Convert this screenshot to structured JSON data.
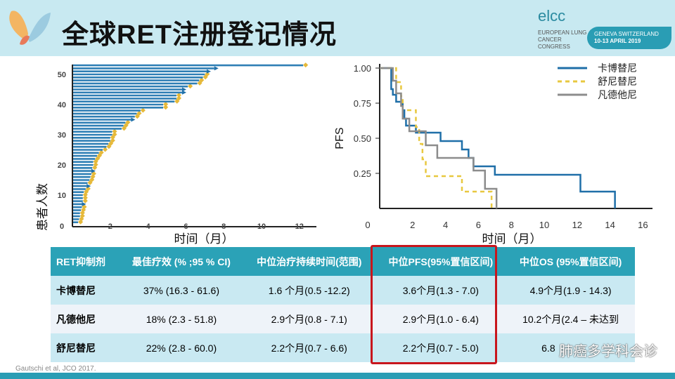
{
  "header": {
    "title": "全球RET注册登记情况",
    "logo_text": "elcc",
    "congress": "EUROPEAN LUNG CANCER CONGRESS",
    "location": "GENEVA SWITZERLAND",
    "dates": "10-13 APRIL 2019"
  },
  "chart_data": [
    {
      "type": "swimmer",
      "ylabel": "患者人数",
      "xlabel": "时间（月）",
      "xlim": [
        0,
        12
      ],
      "ylim": [
        0,
        53
      ],
      "xticks": [
        "0",
        "2",
        "4",
        "6",
        "8",
        "10",
        "12"
      ],
      "yticks": [
        "0",
        "10",
        "20",
        "30",
        "40",
        "50"
      ],
      "durations": [
        0.3,
        0.35,
        0.4,
        0.4,
        0.45,
        0.5,
        0.5,
        0.55,
        0.55,
        0.55,
        0.6,
        0.7,
        0.75,
        0.8,
        0.9,
        0.95,
        1.0,
        1.0,
        1.05,
        1.1,
        1.1,
        1.2,
        1.3,
        1.4,
        1.6,
        1.8,
        1.9,
        2.0,
        2.0,
        2.1,
        2.1,
        2.6,
        2.7,
        2.8,
        3.1,
        3.3,
        3.4,
        3.6,
        4.8,
        4.8,
        5.4,
        5.5,
        5.5,
        5.8,
        5.8,
        6.1,
        6.6,
        6.7,
        6.9,
        7.0,
        7.1,
        7.5,
        12.2
      ],
      "ongoing_patients": [
        7,
        13,
        18,
        35,
        44,
        45,
        51,
        52
      ]
    },
    {
      "type": "line",
      "subtype": "kaplan-meier",
      "ylabel": "PFS",
      "xlabel": "时间（月）",
      "xlim": [
        0,
        16
      ],
      "ylim": [
        0,
        1
      ],
      "xticks": [
        "0",
        "2",
        "4",
        "6",
        "8",
        "10",
        "12",
        "14",
        "16"
      ],
      "yticks": [
        "0.25",
        "0.50",
        "0.75",
        "1.00"
      ],
      "legend_position": "top-right",
      "series": [
        {
          "name": "卡博替尼",
          "color": "#1f6fa8",
          "dash": false,
          "points": [
            [
              0,
              1
            ],
            [
              0.7,
              0.85
            ],
            [
              0.8,
              0.81
            ],
            [
              1.0,
              0.76
            ],
            [
              1.4,
              0.7
            ],
            [
              1.5,
              0.64
            ],
            [
              1.6,
              0.59
            ],
            [
              2.2,
              0.54
            ],
            [
              3.7,
              0.48
            ],
            [
              5.0,
              0.42
            ],
            [
              5.4,
              0.36
            ],
            [
              5.7,
              0.3
            ],
            [
              7.0,
              0.24
            ],
            [
              12.2,
              0.12
            ],
            [
              14.3,
              0
            ]
          ]
        },
        {
          "name": "舒尼替尼",
          "color": "#e8c840",
          "dash": true,
          "points": [
            [
              0,
              1
            ],
            [
              1.0,
              0.9
            ],
            [
              1.3,
              0.8
            ],
            [
              1.4,
              0.7
            ],
            [
              2.2,
              0.58
            ],
            [
              2.4,
              0.46
            ],
            [
              2.6,
              0.35
            ],
            [
              2.8,
              0.23
            ],
            [
              5.0,
              0.12
            ],
            [
              6.8,
              0
            ]
          ]
        },
        {
          "name": "凡德他尼",
          "color": "#8c8c8c",
          "dash": false,
          "points": [
            [
              0,
              1
            ],
            [
              0.8,
              0.91
            ],
            [
              1.0,
              0.82
            ],
            [
              1.3,
              0.73
            ],
            [
              1.4,
              0.64
            ],
            [
              1.8,
              0.55
            ],
            [
              2.8,
              0.45
            ],
            [
              3.5,
              0.36
            ],
            [
              5.7,
              0.27
            ],
            [
              6.4,
              0.14
            ],
            [
              7.1,
              0
            ]
          ]
        }
      ]
    }
  ],
  "table": {
    "headers": [
      "RET抑制剂",
      "最佳疗效 (% ;95 % CI)",
      "中位治疗持续时间(范围)",
      "中位PFS(95%置信区间)",
      "中位OS (95%置信区间)"
    ],
    "rows": [
      [
        "卡博替尼",
        "37% (16.3 - 61.6)",
        "1.6 个月(0.5 -12.2)",
        "3.6个月(1.3 - 7.0)",
        "4.9个月(1.9 - 14.3)"
      ],
      [
        "凡德他尼",
        "18% (2.3 - 51.8)",
        "2.9个月(0.8 - 7.1)",
        "2.9个月(1.0 - 6.4)",
        "10.2个月(2.4 – 未达到"
      ],
      [
        "舒尼替尼",
        "22% (2.8 - 60.0)",
        "2.2个月(0.7 - 6.6)",
        "2.2个月(0.7 - 5.0)",
        "6.8"
      ]
    ]
  },
  "footnote": "Gautschi et al, JCO 2017.",
  "watermark": "肺癌多学科会诊"
}
